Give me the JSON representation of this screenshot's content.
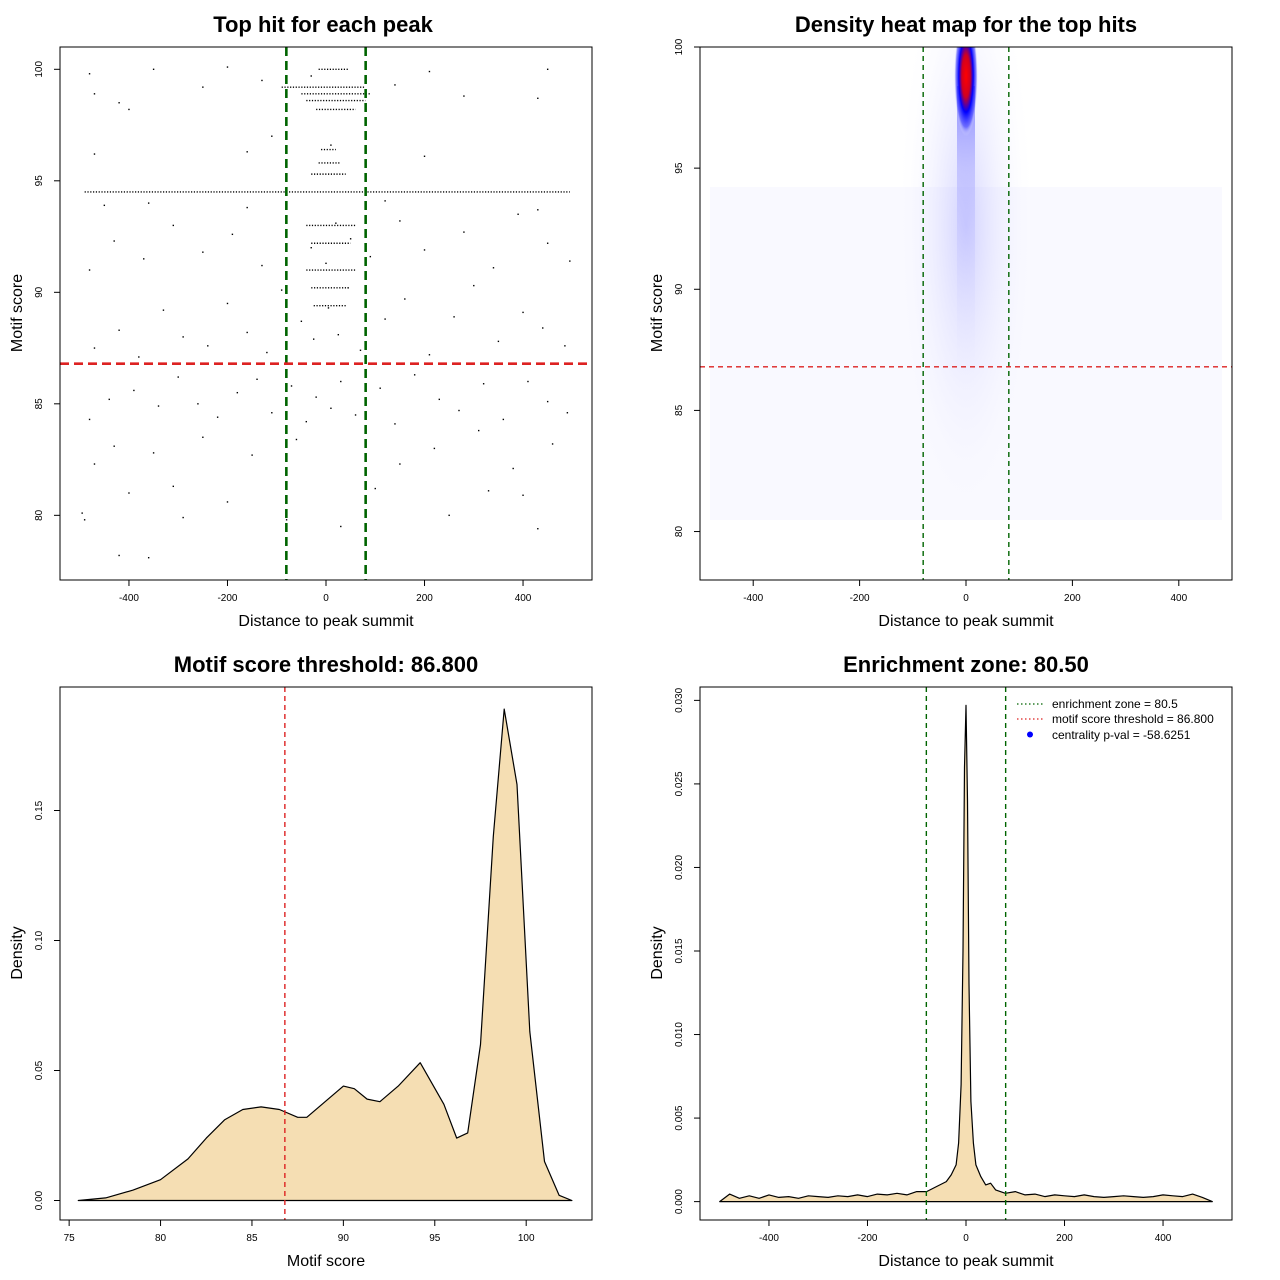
{
  "colors": {
    "green": "#006400",
    "red": "#dd2222",
    "fill": "#f5deb3",
    "blue": "#0000ff",
    "heat_red": "#ff0000"
  },
  "chart_data": [
    {
      "type": "scatter",
      "title": "Top hit for each peak",
      "xlabel": "Distance to peak summit",
      "ylabel": "Motif score",
      "xlim": [
        -540,
        540
      ],
      "ylim": [
        77.1,
        101.0
      ],
      "xticks": [
        -400,
        -200,
        0,
        200,
        400
      ],
      "xtick_labels": [
        "-400",
        "-200",
        "0",
        "200",
        "400"
      ],
      "yticks": [
        80,
        85,
        90,
        95,
        100
      ],
      "ytick_labels": [
        "80",
        "85",
        "90",
        "95",
        "100"
      ],
      "vlines": [
        -80.5,
        80.5
      ],
      "hline": 86.8,
      "points": [
        [
          -360,
          78.1
        ],
        [
          -420,
          78.2
        ],
        [
          -490,
          79.8
        ],
        [
          -495,
          80.1
        ],
        [
          -290,
          79.9
        ],
        [
          30,
          79.5
        ],
        [
          -80,
          79.8
        ],
        [
          -470,
          82.3
        ],
        [
          -400,
          81.0
        ],
        [
          -310,
          81.3
        ],
        [
          -200,
          80.6
        ],
        [
          100,
          81.2
        ],
        [
          250,
          80.0
        ],
        [
          330,
          81.1
        ],
        [
          400,
          80.9
        ],
        [
          430,
          79.4
        ],
        [
          -430,
          83.1
        ],
        [
          -350,
          82.8
        ],
        [
          -250,
          83.5
        ],
        [
          -150,
          82.7
        ],
        [
          -60,
          83.4
        ],
        [
          150,
          82.3
        ],
        [
          220,
          83.0
        ],
        [
          310,
          83.8
        ],
        [
          380,
          82.1
        ],
        [
          460,
          83.2
        ],
        [
          -480,
          84.3
        ],
        [
          -440,
          85.2
        ],
        [
          -390,
          85.6
        ],
        [
          -340,
          84.9
        ],
        [
          -300,
          86.2
        ],
        [
          -260,
          85.0
        ],
        [
          -220,
          84.4
        ],
        [
          -180,
          85.5
        ],
        [
          -140,
          86.1
        ],
        [
          -110,
          84.6
        ],
        [
          -70,
          85.8
        ],
        [
          -40,
          84.2
        ],
        [
          -20,
          85.3
        ],
        [
          10,
          84.8
        ],
        [
          30,
          86.0
        ],
        [
          60,
          84.5
        ],
        [
          110,
          85.7
        ],
        [
          140,
          84.1
        ],
        [
          180,
          86.3
        ],
        [
          230,
          85.2
        ],
        [
          270,
          84.7
        ],
        [
          320,
          85.9
        ],
        [
          360,
          84.3
        ],
        [
          410,
          86.0
        ],
        [
          450,
          85.1
        ],
        [
          490,
          84.6
        ],
        [
          -470,
          87.5
        ],
        [
          -420,
          88.3
        ],
        [
          -380,
          87.1
        ],
        [
          -330,
          89.2
        ],
        [
          -290,
          88.0
        ],
        [
          -240,
          87.6
        ],
        [
          -200,
          89.5
        ],
        [
          -160,
          88.2
        ],
        [
          -120,
          87.3
        ],
        [
          -90,
          90.1
        ],
        [
          -50,
          88.7
        ],
        [
          -25,
          87.9
        ],
        [
          5,
          89.3
        ],
        [
          25,
          88.1
        ],
        [
          45,
          90.2
        ],
        [
          70,
          87.4
        ],
        [
          120,
          88.8
        ],
        [
          160,
          89.7
        ],
        [
          210,
          87.2
        ],
        [
          260,
          88.9
        ],
        [
          300,
          90.3
        ],
        [
          350,
          87.8
        ],
        [
          400,
          89.1
        ],
        [
          440,
          88.4
        ],
        [
          485,
          87.6
        ],
        [
          -480,
          91.0
        ],
        [
          -430,
          92.3
        ],
        [
          -370,
          91.5
        ],
        [
          -310,
          93.0
        ],
        [
          -250,
          91.8
        ],
        [
          -190,
          92.6
        ],
        [
          -130,
          91.2
        ],
        [
          -80,
          93.4
        ],
        [
          -30,
          92.0
        ],
        [
          0,
          91.3
        ],
        [
          20,
          93.1
        ],
        [
          50,
          92.4
        ],
        [
          90,
          91.6
        ],
        [
          150,
          93.2
        ],
        [
          200,
          91.9
        ],
        [
          280,
          92.7
        ],
        [
          340,
          91.1
        ],
        [
          390,
          93.5
        ],
        [
          450,
          92.2
        ],
        [
          495,
          91.4
        ],
        [
          -450,
          93.9
        ],
        [
          -360,
          94.0
        ],
        [
          -160,
          93.8
        ],
        [
          120,
          94.1
        ],
        [
          430,
          93.7
        ],
        [
          -470,
          96.2
        ],
        [
          -160,
          96.3
        ],
        [
          10,
          96.6
        ],
        [
          200,
          96.1
        ],
        [
          -110,
          97.0
        ],
        [
          -470,
          98.9
        ],
        [
          -420,
          98.5
        ],
        [
          -400,
          98.2
        ],
        [
          -250,
          99.2
        ],
        [
          -130,
          99.5
        ],
        [
          140,
          99.3
        ],
        [
          280,
          98.8
        ],
        [
          430,
          98.7
        ],
        [
          -480,
          99.8
        ],
        [
          -350,
          100.0
        ],
        [
          -200,
          100.1
        ],
        [
          -30,
          99.7
        ],
        [
          210,
          99.9
        ],
        [
          450,
          100.0
        ]
      ],
      "bands": [
        {
          "y": 100.0,
          "x0": -15,
          "x1": 45
        },
        {
          "y": 99.2,
          "x0": -90,
          "x1": 80
        },
        {
          "y": 98.9,
          "x0": -50,
          "x1": 90
        },
        {
          "y": 98.6,
          "x0": -40,
          "x1": 80
        },
        {
          "y": 98.2,
          "x0": -20,
          "x1": 60
        },
        {
          "y": 96.4,
          "x0": -10,
          "x1": 20
        },
        {
          "y": 95.8,
          "x0": -15,
          "x1": 30
        },
        {
          "y": 95.3,
          "x0": -30,
          "x1": 40
        },
        {
          "y": 94.5,
          "x0": -490,
          "x1": 495
        },
        {
          "y": 93.0,
          "x0": -40,
          "x1": 60
        },
        {
          "y": 92.2,
          "x0": -30,
          "x1": 50
        },
        {
          "y": 91.0,
          "x0": -40,
          "x1": 60
        },
        {
          "y": 90.2,
          "x0": -30,
          "x1": 45
        },
        {
          "y": 89.4,
          "x0": -25,
          "x1": 40
        }
      ]
    },
    {
      "type": "heatmap",
      "title": "Density heat map for the top hits",
      "xlabel": "Distance to peak summit",
      "ylabel": "Motif score",
      "xlim": [
        -500,
        500
      ],
      "ylim": [
        78.0,
        100.0
      ],
      "xticks": [
        -400,
        -200,
        0,
        200,
        400
      ],
      "xtick_labels": [
        "-400",
        "-200",
        "0",
        "200",
        "400"
      ],
      "yticks": [
        80,
        85,
        90,
        95,
        100
      ],
      "ytick_labels": [
        "80",
        "85",
        "90",
        "95",
        "100"
      ],
      "vlines": [
        -80.5,
        80.5
      ],
      "hline": 86.8,
      "hotspot": {
        "x": 0,
        "y": 98.8
      }
    },
    {
      "type": "area",
      "title": "Motif score threshold: 86.800",
      "xlabel": "Motif score",
      "ylabel": "Density",
      "xlim": [
        74.5,
        103.6
      ],
      "ylim": [
        -0.0075,
        0.1975
      ],
      "xticks": [
        75,
        80,
        85,
        90,
        95,
        100
      ],
      "xtick_labels": [
        "75",
        "80",
        "85",
        "90",
        "95",
        "100"
      ],
      "yticks": [
        0.0,
        0.05,
        0.1,
        0.15
      ],
      "ytick_labels": [
        "0.00",
        "0.05",
        "0.10",
        "0.15"
      ],
      "vline": 86.8,
      "x": [
        75.5,
        77.0,
        78.5,
        80.0,
        81.5,
        82.5,
        83.5,
        84.5,
        85.5,
        86.5,
        87.5,
        88.0,
        89.0,
        90.0,
        90.6,
        91.3,
        92.0,
        93.0,
        94.2,
        95.5,
        96.2,
        96.8,
        97.5,
        98.2,
        98.8,
        99.5,
        100.2,
        101.0,
        101.8,
        102.5
      ],
      "y": [
        0.0,
        0.001,
        0.004,
        0.008,
        0.016,
        0.024,
        0.031,
        0.035,
        0.036,
        0.035,
        0.032,
        0.032,
        0.038,
        0.044,
        0.043,
        0.039,
        0.038,
        0.044,
        0.053,
        0.037,
        0.024,
        0.026,
        0.06,
        0.14,
        0.189,
        0.16,
        0.065,
        0.015,
        0.002,
        0.0
      ]
    },
    {
      "type": "area",
      "title": "Enrichment zone: 80.50",
      "xlabel": "Distance to peak summit",
      "ylabel": "Density",
      "xlim": [
        -540,
        540
      ],
      "ylim": [
        -0.0011,
        0.0308
      ],
      "xticks": [
        -400,
        -200,
        0,
        200,
        400
      ],
      "xtick_labels": [
        "-400",
        "-200",
        "0",
        "200",
        "400"
      ],
      "yticks": [
        0.0,
        0.005,
        0.01,
        0.015,
        0.02,
        0.025,
        0.03
      ],
      "ytick_labels": [
        "0.000",
        "0.005",
        "0.010",
        "0.015",
        "0.020",
        "0.025",
        "0.030"
      ],
      "vlines": [
        -80.5,
        80.5
      ],
      "x": [
        -500,
        -480,
        -460,
        -440,
        -420,
        -400,
        -380,
        -360,
        -340,
        -320,
        -300,
        -280,
        -260,
        -240,
        -220,
        -200,
        -180,
        -160,
        -140,
        -120,
        -100,
        -80,
        -60,
        -40,
        -30,
        -20,
        -15,
        -10,
        -6,
        -3,
        0,
        3,
        6,
        10,
        15,
        20,
        30,
        40,
        50,
        60,
        80,
        100,
        120,
        140,
        160,
        180,
        200,
        220,
        240,
        260,
        280,
        300,
        320,
        340,
        360,
        380,
        400,
        420,
        440,
        460,
        480,
        500
      ],
      "y": [
        0.0,
        0.00045,
        0.0002,
        0.00035,
        0.0002,
        0.0004,
        0.00025,
        0.0003,
        0.0002,
        0.00035,
        0.0003,
        0.00025,
        0.00035,
        0.0003,
        0.0004,
        0.0003,
        0.00045,
        0.0004,
        0.0005,
        0.0004,
        0.0006,
        0.0006,
        0.0009,
        0.0012,
        0.0016,
        0.0022,
        0.0035,
        0.007,
        0.015,
        0.026,
        0.0297,
        0.024,
        0.013,
        0.006,
        0.0035,
        0.0022,
        0.0015,
        0.001,
        0.0011,
        0.0007,
        0.0005,
        0.0006,
        0.0004,
        0.00045,
        0.0003,
        0.0004,
        0.00035,
        0.0003,
        0.0004,
        0.0003,
        0.00025,
        0.0003,
        0.00035,
        0.0003,
        0.00025,
        0.0003,
        0.0004,
        0.00035,
        0.0003,
        0.00045,
        0.00025,
        0.0
      ]
    }
  ],
  "legend": [
    {
      "label": "enrichment zone = 80.5",
      "style": "green-dotted"
    },
    {
      "label": "motif score threshold = 86.800",
      "style": "red-dotted"
    },
    {
      "label": "centrality p-val = -58.6251",
      "style": "blue-dot"
    }
  ]
}
